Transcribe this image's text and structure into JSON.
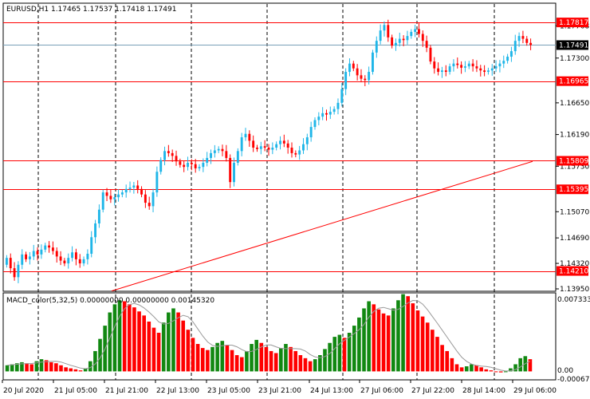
{
  "header": {
    "symbol_line": "EURUSD,H1  1.17465 1.17537 1.17418 1.17491"
  },
  "macd_header": {
    "text": "MACD_color(5,32,5) 0.00000000 0.00000000 0.00145320"
  },
  "colors": {
    "bull": "#1fb6e8",
    "bear": "#ff0000",
    "macd_up": "#118811",
    "macd_down": "#ff0000",
    "level": "#ff0000",
    "ma": "#ff0000",
    "grid": "#000000"
  },
  "chart_data": [
    {
      "type": "candlestick",
      "symbol": "EURUSD",
      "timeframe": "H1",
      "ylim": [
        1.1395,
        1.1805
      ],
      "price_ticks": [
        "1.17768",
        "1.17300",
        "1.16650",
        "1.16190",
        "1.15730",
        "1.15070",
        "1.14690",
        "1.14320",
        "1.13950"
      ],
      "current_price": "1.17491",
      "level_labels": [
        "1.17817",
        "1.16965",
        "1.15809",
        "1.15395",
        "1.14210"
      ],
      "levels": [
        1.17817,
        1.16965,
        1.15809,
        1.15395,
        1.1421
      ],
      "x_labels": [
        "20 Jul 2020",
        "21 Jul 05:00",
        "21 Jul 21:00",
        "22 Jul 13:00",
        "23 Jul 05:00",
        "23 Jul 21:00",
        "24 Jul 13:00",
        "27 Jul 06:00",
        "27 Jul 22:00",
        "28 Jul 14:00",
        "29 Jul 06:00"
      ],
      "moving_average": {
        "start": 1.1392,
        "end": 1.158
      },
      "closes": [
        1.144,
        1.1425,
        1.1412,
        1.143,
        1.1445,
        1.1438,
        1.1442,
        1.145,
        1.1445,
        1.1452,
        1.1458,
        1.1455,
        1.145,
        1.1442,
        1.1436,
        1.1432,
        1.144,
        1.1448,
        1.1438,
        1.1432,
        1.1438,
        1.1446,
        1.147,
        1.149,
        1.151,
        1.1535,
        1.153,
        1.1525,
        1.1528,
        1.1532,
        1.1535,
        1.154,
        1.1542,
        1.1545,
        1.154,
        1.1532,
        1.152,
        1.1515,
        1.1535,
        1.1565,
        1.1582,
        1.1595,
        1.1592,
        1.1588,
        1.158,
        1.1575,
        1.1572,
        1.1578,
        1.1576,
        1.157,
        1.1572,
        1.1578,
        1.1585,
        1.1592,
        1.1596,
        1.1598,
        1.1595,
        1.1585,
        1.155,
        1.1578,
        1.1595,
        1.1615,
        1.162,
        1.161,
        1.16,
        1.1598,
        1.1602,
        1.16,
        1.1597,
        1.16,
        1.1605,
        1.161,
        1.1606,
        1.16,
        1.1592,
        1.159,
        1.1596,
        1.1605,
        1.1615,
        1.163,
        1.164,
        1.1645,
        1.165,
        1.1648,
        1.1652,
        1.1656,
        1.1665,
        1.1685,
        1.171,
        1.1722,
        1.1715,
        1.1705,
        1.17,
        1.1698,
        1.171,
        1.1738,
        1.1755,
        1.177,
        1.1778,
        1.176,
        1.1748,
        1.1752,
        1.1758,
        1.1756,
        1.1762,
        1.1768,
        1.1772,
        1.1765,
        1.1755,
        1.1745,
        1.1725,
        1.1715,
        1.171,
        1.1712,
        1.171,
        1.1718,
        1.1722,
        1.172,
        1.1716,
        1.1718,
        1.1722,
        1.1718,
        1.1715,
        1.1712,
        1.171,
        1.1712,
        1.1715,
        1.1718,
        1.1722,
        1.1726,
        1.1732,
        1.174,
        1.1755,
        1.1762,
        1.1758,
        1.1752,
        1.1749
      ]
    },
    {
      "type": "bar",
      "title": "MACD_color(5,32,5)",
      "values_text": [
        "0.00000000",
        "0.00000000",
        "0.00145320"
      ],
      "y_ticks": [
        "0.0073337",
        "0.00",
        "-0.000675"
      ],
      "histogram": [
        0.0006,
        0.0007,
        0.0008,
        0.0009,
        0.0008,
        0.0007,
        0.001,
        0.0012,
        0.0011,
        0.0009,
        0.0008,
        0.0006,
        0.0004,
        0.0003,
        0.0002,
        0.0001,
        0.0003,
        0.001,
        0.002,
        0.0032,
        0.0045,
        0.0058,
        0.0066,
        0.007,
        0.0069,
        0.0066,
        0.0063,
        0.0059,
        0.0055,
        0.0049,
        0.0043,
        0.0038,
        0.0048,
        0.0058,
        0.0062,
        0.0058,
        0.005,
        0.0041,
        0.0033,
        0.0027,
        0.0023,
        0.0021,
        0.0024,
        0.0028,
        0.003,
        0.0026,
        0.0021,
        0.0016,
        0.0014,
        0.002,
        0.0027,
        0.0031,
        0.0028,
        0.0024,
        0.002,
        0.0018,
        0.0023,
        0.0027,
        0.0024,
        0.002,
        0.0016,
        0.0013,
        0.001,
        0.0012,
        0.0016,
        0.0022,
        0.0028,
        0.0034,
        0.0036,
        0.0033,
        0.0038,
        0.0045,
        0.0053,
        0.0062,
        0.0069,
        0.0066,
        0.0061,
        0.0057,
        0.0055,
        0.0062,
        0.007,
        0.0076,
        0.0074,
        0.0067,
        0.006,
        0.0054,
        0.0048,
        0.0041,
        0.0034,
        0.0026,
        0.002,
        0.0013,
        0.0007,
        0.0004,
        0.0005,
        0.0007,
        0.0006,
        0.0004,
        0.0002,
        0.0001,
        0.0,
        -0.0001,
        0.0,
        0.0003,
        0.0007,
        0.0013,
        0.0015,
        0.0012
      ]
    }
  ]
}
